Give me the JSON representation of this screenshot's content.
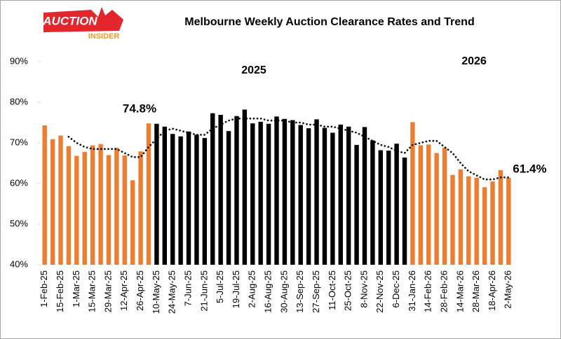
{
  "chart_data": {
    "type": "bar",
    "title": "Melbourne Weekly Auction Clearance Rates and Trend",
    "logo": {
      "line1": "AUCTION",
      "line2": "INSIDER"
    },
    "annotations": [
      {
        "text": "2025"
      },
      {
        "text": "2026"
      },
      {
        "text": "74.8%",
        "index": 13
      },
      {
        "text": "61.4%",
        "index": 58
      }
    ],
    "categories": [
      "1-Feb-25",
      null,
      "15-Feb-25",
      null,
      "1-Mar-25",
      null,
      "15-Mar-25",
      null,
      "29-Mar-25",
      null,
      "12-Apr-25",
      null,
      "26-Apr-25",
      null,
      "10-May-25",
      null,
      "24-May-25",
      null,
      "7-Jun-25",
      null,
      "21-Jun-25",
      null,
      "5-Jul-25",
      null,
      "19-Jul-25",
      null,
      "2-Aug-25",
      null,
      "16-Aug-25",
      null,
      "30-Aug-25",
      null,
      "13-Sep-25",
      null,
      "27-Sep-25",
      null,
      "11-Oct-25",
      null,
      "25-Oct-25",
      null,
      "8-Nov-25",
      null,
      "22-Nov-25",
      null,
      "6-Dec-25",
      null,
      "31-Jan-26",
      null,
      "14-Feb-26",
      null,
      "28-Feb-26",
      null,
      "14-Mar-26",
      null,
      "28-Mar-26",
      null,
      "18-Apr-26",
      null,
      "2-May-26"
    ],
    "values": [
      74.3,
      70.9,
      71.8,
      69.2,
      66.8,
      67.8,
      69.4,
      69.7,
      67.0,
      68.8,
      66.9,
      60.8,
      67.9,
      74.8,
      74.7,
      74.0,
      72.2,
      71.6,
      72.8,
      72.0,
      71.2,
      77.3,
      76.9,
      72.9,
      76.6,
      78.2,
      74.8,
      75.2,
      74.7,
      76.5,
      75.9,
      75.6,
      74.4,
      73.6,
      75.8,
      73.7,
      72.5,
      74.5,
      74.0,
      69.5,
      73.9,
      70.6,
      68.2,
      68.1,
      69.8,
      66.4,
      75.1,
      69.4,
      69.6,
      67.5,
      68.8,
      62.1,
      63.5,
      61.8,
      61.4,
      59.1,
      60.5,
      63.3,
      61.4
    ],
    "colors": [
      "#ed7d31",
      "#ed7d31",
      "#ed7d31",
      "#ed7d31",
      "#ed7d31",
      "#ed7d31",
      "#ed7d31",
      "#ed7d31",
      "#ed7d31",
      "#ed7d31",
      "#ed7d31",
      "#ed7d31",
      "#ed7d31",
      "#ed7d31",
      "#000000",
      "#000000",
      "#000000",
      "#000000",
      "#000000",
      "#000000",
      "#000000",
      "#000000",
      "#000000",
      "#000000",
      "#000000",
      "#000000",
      "#000000",
      "#000000",
      "#000000",
      "#000000",
      "#000000",
      "#000000",
      "#000000",
      "#000000",
      "#000000",
      "#000000",
      "#000000",
      "#000000",
      "#000000",
      "#000000",
      "#000000",
      "#000000",
      "#000000",
      "#000000",
      "#000000",
      "#000000",
      "#ed7d31",
      "#ed7d31",
      "#ed7d31",
      "#ed7d31",
      "#ed7d31",
      "#ed7d31",
      "#ed7d31",
      "#ed7d31",
      "#ed7d31",
      "#ed7d31",
      "#ed7d31",
      "#ed7d31",
      "#ed7d31"
    ],
    "trend": [
      null,
      null,
      null,
      71.5,
      70,
      69,
      68.5,
      68.5,
      68.5,
      68.5,
      67.5,
      66.5,
      66.5,
      69,
      71,
      73,
      73.5,
      73,
      72.5,
      72,
      72,
      73.5,
      74.5,
      75.5,
      76,
      76,
      76,
      76,
      75.5,
      75.5,
      75.5,
      75,
      75,
      74.5,
      74.5,
      74,
      74,
      73.5,
      73,
      72.5,
      71.5,
      70.5,
      69.5,
      69,
      68,
      67.5,
      69.5,
      70,
      70.5,
      70.5,
      69,
      67.5,
      65,
      63,
      62,
      61,
      61,
      61.5,
      61.5
    ],
    "trend_color": "#000000",
    "ylim": [
      40,
      90
    ],
    "yticks": [
      {
        "value": 40,
        "label": "40%"
      },
      {
        "value": 50,
        "label": "50%"
      },
      {
        "value": 60,
        "label": "60%"
      },
      {
        "value": 70,
        "label": "70%"
      },
      {
        "value": 80,
        "label": "80%"
      },
      {
        "value": 90,
        "label": "90%"
      }
    ],
    "grid": false
  }
}
